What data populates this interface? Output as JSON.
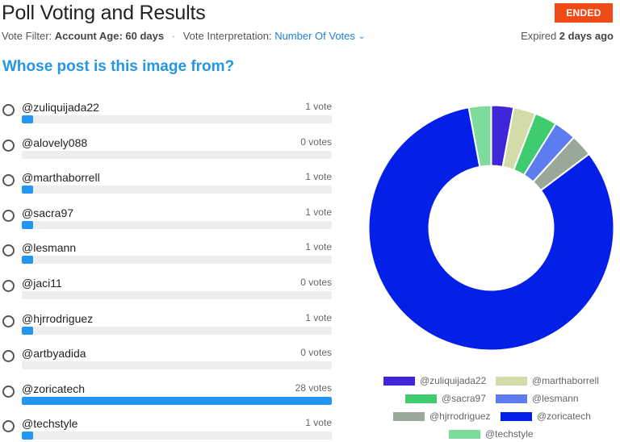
{
  "header": {
    "title": "Poll Voting and Results",
    "status_badge": "ENDED",
    "vote_filter_label": "Vote Filter:",
    "vote_filter_value": "Account Age: 60 days",
    "separator": "·",
    "vote_interpretation_label": "Vote Interpretation:",
    "vote_interpretation_value": "Number Of Votes",
    "expired_label": "Expired",
    "expired_value": "2 days ago"
  },
  "question": "Whose post is this image from?",
  "options": [
    {
      "label": "@zuliquijada22",
      "votes_text": "1 vote",
      "votes": 1
    },
    {
      "label": "@alovely088",
      "votes_text": "0 votes",
      "votes": 0
    },
    {
      "label": "@marthaborrell",
      "votes_text": "1 vote",
      "votes": 1
    },
    {
      "label": "@sacra97",
      "votes_text": "1 vote",
      "votes": 1
    },
    {
      "label": "@lesmann",
      "votes_text": "1 vote",
      "votes": 1
    },
    {
      "label": "@jaci11",
      "votes_text": "0 votes",
      "votes": 0
    },
    {
      "label": "@hjrrodriguez",
      "votes_text": "1 vote",
      "votes": 1
    },
    {
      "label": "@artbyadida",
      "votes_text": "0 votes",
      "votes": 0
    },
    {
      "label": "@zoricatech",
      "votes_text": "28 votes",
      "votes": 28
    },
    {
      "label": "@techstyle",
      "votes_text": "1 vote",
      "votes": 1
    }
  ],
  "chart_data": {
    "type": "pie",
    "style": "doughnut",
    "categories": [
      "@zuliquijada22",
      "@marthaborrell",
      "@sacra97",
      "@lesmann",
      "@hjrrodriguez",
      "@zoricatech",
      "@techstyle"
    ],
    "values": [
      1,
      1,
      1,
      1,
      1,
      28,
      1
    ],
    "colors": [
      "#3f26d9",
      "#d3dca9",
      "#3ecc6e",
      "#5c7cf0",
      "#9aa89a",
      "#0420e8",
      "#7ddc9c"
    ],
    "legend_placement": "bottom"
  },
  "colors": {
    "accent": "#2596e0",
    "bar_fill": "#2196f3",
    "badge": "#f04a17"
  }
}
